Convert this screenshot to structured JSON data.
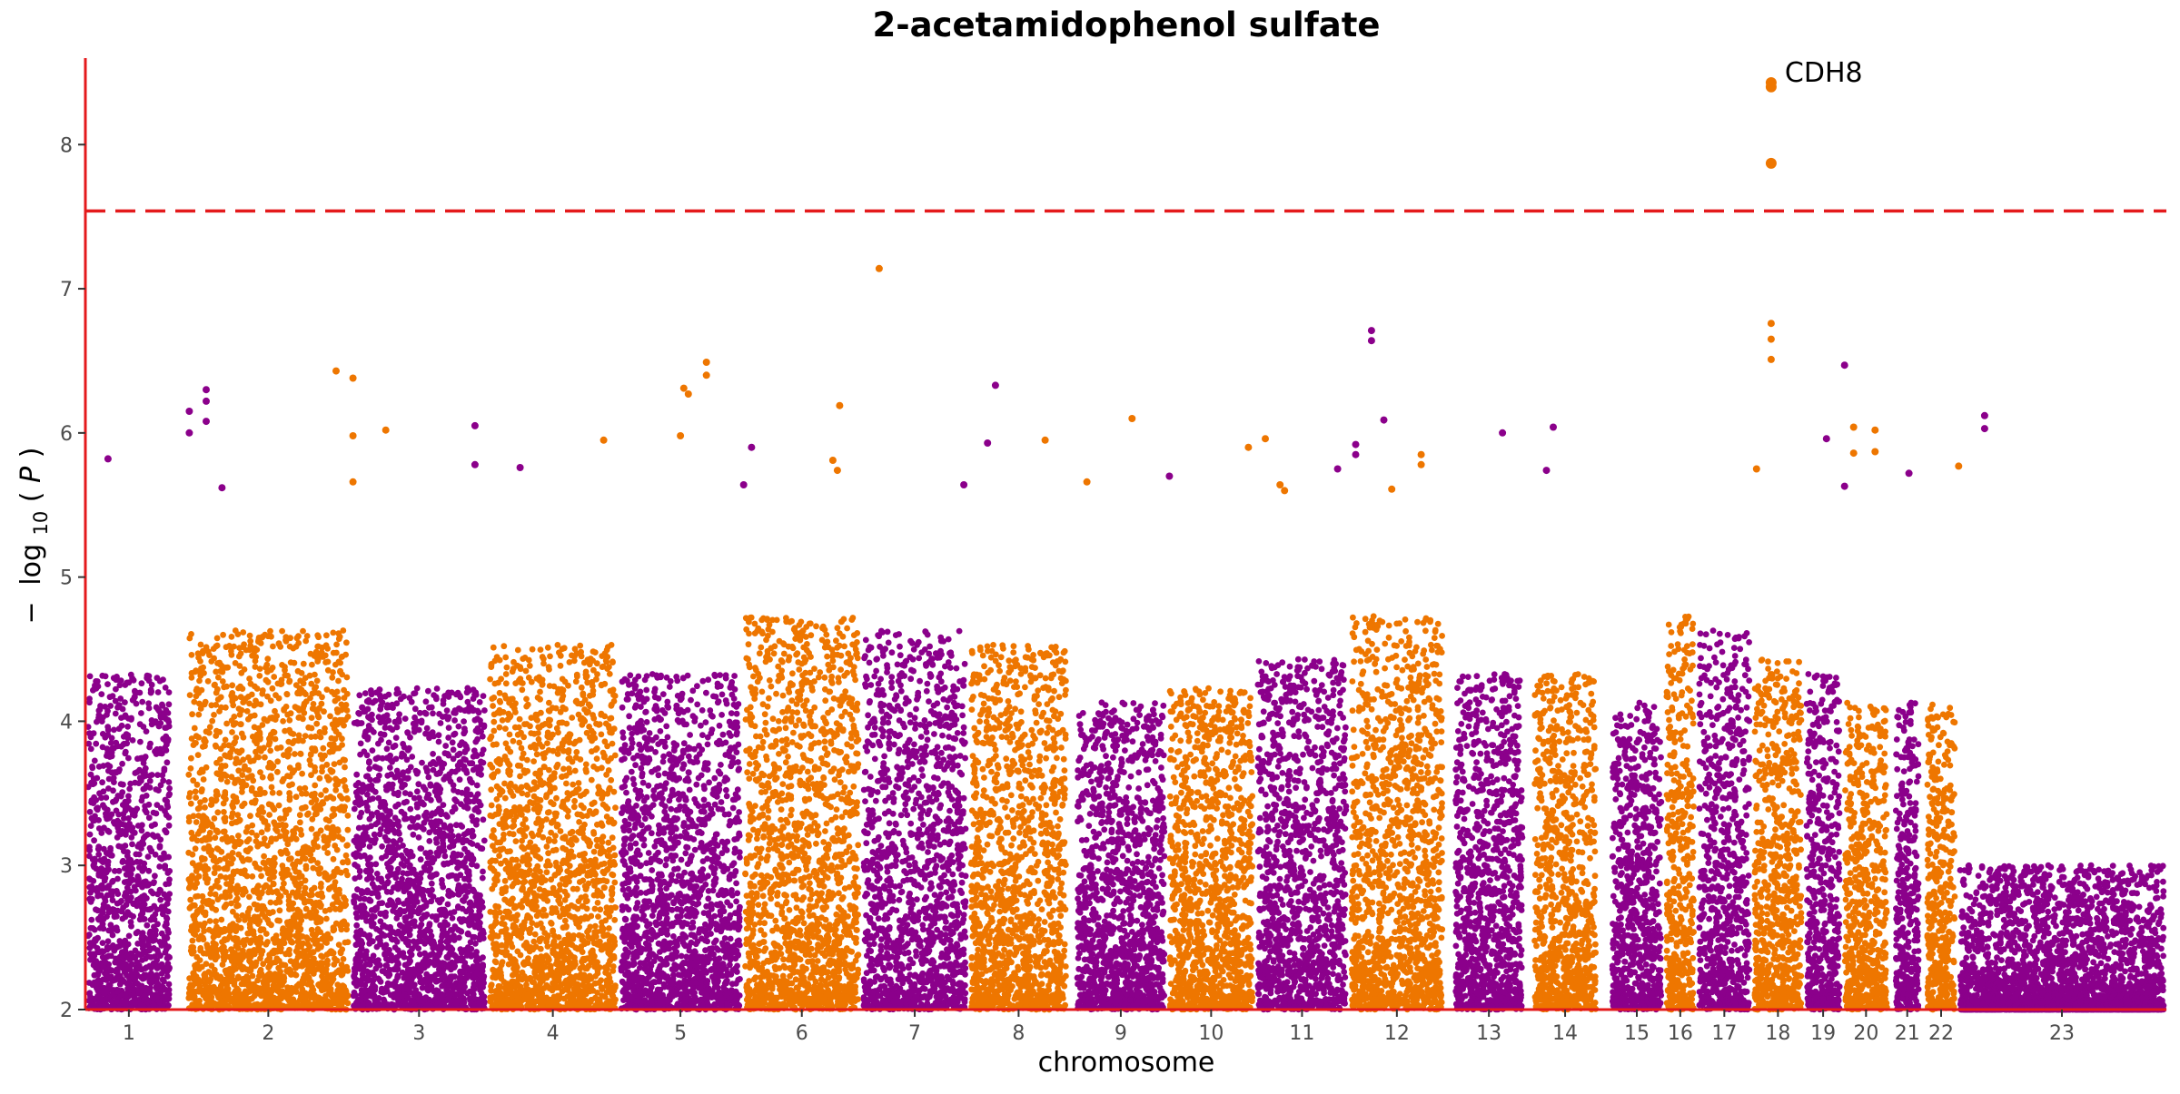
{
  "chart_data": {
    "type": "scatter",
    "subtype": "manhattan",
    "title": "2-acetamidophenol sulfate",
    "xlabel": "chromosome",
    "ylabel_parts": [
      "−",
      "log",
      "10",
      "(",
      "P",
      ")"
    ],
    "ylim": [
      2,
      8.6
    ],
    "yticks": [
      2,
      3,
      4,
      5,
      6,
      7,
      8
    ],
    "threshold": 7.54,
    "colors": {
      "odd": "#8B008B",
      "even": "#EE7600",
      "threshold": "#E41A1C",
      "axis": "#E41A1C"
    },
    "chromosomes": [
      {
        "label": "1",
        "start": 0.0,
        "end": 77.0,
        "peak": 4.2
      },
      {
        "label": "2",
        "start": 89.0,
        "end": 235.0,
        "peak": 4.5
      },
      {
        "label": "3",
        "start": 235.0,
        "end": 356.0,
        "peak": 4.1
      },
      {
        "label": "4",
        "start": 356.0,
        "end": 472.0,
        "peak": 4.4
      },
      {
        "label": "5",
        "start": 472.0,
        "end": 582.0,
        "peak": 4.2
      },
      {
        "label": "6",
        "start": 582.0,
        "end": 687.0,
        "peak": 4.6
      },
      {
        "label": "7",
        "start": 687.0,
        "end": 782.0,
        "peak": 4.5
      },
      {
        "label": "8",
        "start": 782.0,
        "end": 871.0,
        "peak": 4.4
      },
      {
        "label": "9",
        "start": 876.0,
        "end": 958.0,
        "peak": 4.0
      },
      {
        "label": "10",
        "start": 958.0,
        "end": 1036.0,
        "peak": 4.1
      },
      {
        "label": "11",
        "start": 1036.0,
        "end": 1119.0,
        "peak": 4.3
      },
      {
        "label": "12",
        "start": 1119.0,
        "end": 1204.0,
        "peak": 4.6
      },
      {
        "label": "13",
        "start": 1211.0,
        "end": 1275.0,
        "peak": 4.2
      },
      {
        "label": "14",
        "start": 1281.0,
        "end": 1340.0,
        "peak": 4.2
      },
      {
        "label": "15",
        "start": 1350.0,
        "end": 1398.0,
        "peak": 4.0
      },
      {
        "label": "16",
        "start": 1398.0,
        "end": 1427.0,
        "peak": 4.6
      },
      {
        "label": "17",
        "start": 1427.0,
        "end": 1476.0,
        "peak": 4.5
      },
      {
        "label": "18",
        "start": 1476.0,
        "end": 1522.0,
        "peak": 4.3
      },
      {
        "label": "19",
        "start": 1522.0,
        "end": 1556.0,
        "peak": 4.2
      },
      {
        "label": "20",
        "start": 1556.0,
        "end": 1598.0,
        "peak": 4.0
      },
      {
        "label": "21",
        "start": 1601.0,
        "end": 1626.0,
        "peak": 4.0
      },
      {
        "label": "22",
        "start": 1629.0,
        "end": 1658.0,
        "peak": 4.0
      },
      {
        "label": "23",
        "start": 1658.0,
        "end": 1843.0,
        "peak": 3.0
      }
    ],
    "hits": [
      {
        "chr": "1",
        "x": 20,
        "y": 5.82
      },
      {
        "chr": "1",
        "x": 92,
        "y": 6.0
      },
      {
        "chr": "1",
        "x": 92,
        "y": 6.15
      },
      {
        "chr": "1",
        "x": 107,
        "y": 6.3
      },
      {
        "chr": "1",
        "x": 107,
        "y": 6.22
      },
      {
        "chr": "1",
        "x": 107,
        "y": 6.08
      },
      {
        "chr": "1",
        "x": 121,
        "y": 5.62
      },
      {
        "chr": "2",
        "x": 222,
        "y": 6.43
      },
      {
        "chr": "2",
        "x": 237,
        "y": 6.38
      },
      {
        "chr": "2",
        "x": 237,
        "y": 5.98
      },
      {
        "chr": "2",
        "x": 237,
        "y": 5.66
      },
      {
        "chr": "2",
        "x": 266,
        "y": 6.02
      },
      {
        "chr": "3",
        "x": 345,
        "y": 6.05
      },
      {
        "chr": "3",
        "x": 345,
        "y": 5.78
      },
      {
        "chr": "3",
        "x": 385,
        "y": 5.76
      },
      {
        "chr": "4",
        "x": 459,
        "y": 5.95
      },
      {
        "chr": "4",
        "x": 530,
        "y": 6.31
      },
      {
        "chr": "4",
        "x": 534,
        "y": 6.27
      },
      {
        "chr": "4",
        "x": 527,
        "y": 5.98
      },
      {
        "chr": "4",
        "x": 550,
        "y": 6.49
      },
      {
        "chr": "4",
        "x": 550,
        "y": 6.4
      },
      {
        "chr": "5",
        "x": 590,
        "y": 5.9
      },
      {
        "chr": "5",
        "x": 583,
        "y": 5.64
      },
      {
        "chr": "6",
        "x": 662,
        "y": 5.81
      },
      {
        "chr": "6",
        "x": 668,
        "y": 6.19
      },
      {
        "chr": "6",
        "x": 703,
        "y": 7.14
      },
      {
        "chr": "6",
        "x": 666,
        "y": 5.74
      },
      {
        "chr": "7",
        "x": 806,
        "y": 6.33
      },
      {
        "chr": "7",
        "x": 799,
        "y": 5.93
      },
      {
        "chr": "7",
        "x": 778,
        "y": 5.64
      },
      {
        "chr": "8",
        "x": 850,
        "y": 5.95
      },
      {
        "chr": "8",
        "x": 927,
        "y": 6.1
      },
      {
        "chr": "8",
        "x": 887,
        "y": 5.66
      },
      {
        "chr": "9",
        "x": 960,
        "y": 5.7
      },
      {
        "chr": "10",
        "x": 1030,
        "y": 5.9
      },
      {
        "chr": "10",
        "x": 1045,
        "y": 5.96
      },
      {
        "chr": "10",
        "x": 1062,
        "y": 5.6
      },
      {
        "chr": "10",
        "x": 1058,
        "y": 5.64
      },
      {
        "chr": "11",
        "x": 1139,
        "y": 6.71
      },
      {
        "chr": "11",
        "x": 1139,
        "y": 6.64
      },
      {
        "chr": "11",
        "x": 1150,
        "y": 6.09
      },
      {
        "chr": "11",
        "x": 1125,
        "y": 5.92
      },
      {
        "chr": "11",
        "x": 1125,
        "y": 5.85
      },
      {
        "chr": "11",
        "x": 1109,
        "y": 5.75
      },
      {
        "chr": "12",
        "x": 1183,
        "y": 5.85
      },
      {
        "chr": "12",
        "x": 1183,
        "y": 5.78
      },
      {
        "chr": "12",
        "x": 1157,
        "y": 5.61
      },
      {
        "chr": "13",
        "x": 1255,
        "y": 6.0
      },
      {
        "chr": "13",
        "x": 1300,
        "y": 6.04
      },
      {
        "chr": "13",
        "x": 1294,
        "y": 5.74
      },
      {
        "chr": "16",
        "x": 1493,
        "y": 8.43
      },
      {
        "chr": "16",
        "x": 1493,
        "y": 8.4
      },
      {
        "chr": "16",
        "x": 1493,
        "y": 7.87
      },
      {
        "chr": "16",
        "x": 1493,
        "y": 6.76
      },
      {
        "chr": "16",
        "x": 1493,
        "y": 6.65
      },
      {
        "chr": "16",
        "x": 1493,
        "y": 6.51
      },
      {
        "chr": "16",
        "x": 1480,
        "y": 5.75
      },
      {
        "chr": "17",
        "x": 1558,
        "y": 6.47
      },
      {
        "chr": "17",
        "x": 1542,
        "y": 5.96
      },
      {
        "chr": "17",
        "x": 1558,
        "y": 5.63
      },
      {
        "chr": "18",
        "x": 1566,
        "y": 6.04
      },
      {
        "chr": "18",
        "x": 1585,
        "y": 6.02
      },
      {
        "chr": "18",
        "x": 1566,
        "y": 5.86
      },
      {
        "chr": "18",
        "x": 1585,
        "y": 5.87
      },
      {
        "chr": "19",
        "x": 1615,
        "y": 5.72
      },
      {
        "chr": "20",
        "x": 1659,
        "y": 5.77
      },
      {
        "chr": "21",
        "x": 1682,
        "y": 6.12
      },
      {
        "chr": "21",
        "x": 1682,
        "y": 6.03
      }
    ],
    "annotation": {
      "text": "CDH8",
      "x": 1493,
      "y": 8.43
    }
  }
}
